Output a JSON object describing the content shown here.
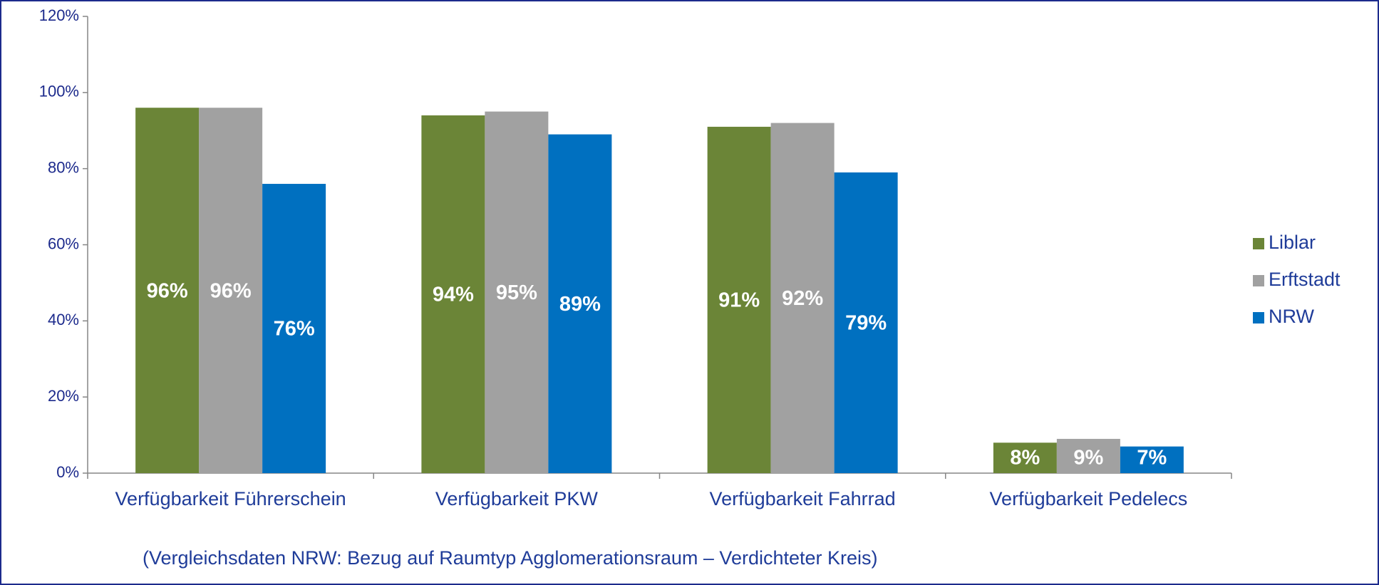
{
  "chart_data": {
    "type": "bar",
    "categories": [
      "Verfügbarkeit Führerschein",
      "Verfügbarkeit PKW",
      "Verfügbarkeit Fahrrad",
      "Verfügbarkeit Pedelecs"
    ],
    "series": [
      {
        "name": "Liblar",
        "color": "#6b8537",
        "values": [
          96,
          94,
          91,
          8
        ],
        "value_labels": [
          "96%",
          "94%",
          "91%",
          "8%"
        ]
      },
      {
        "name": "Erftstadt",
        "color": "#a1a1a1",
        "values": [
          96,
          95,
          92,
          9
        ],
        "value_labels": [
          "96%",
          "95%",
          "92%",
          "9%"
        ]
      },
      {
        "name": "NRW",
        "color": "#0070c0",
        "values": [
          76,
          89,
          79,
          7
        ],
        "value_labels": [
          "76%",
          "89%",
          "79%",
          "7%"
        ]
      }
    ],
    "ylim": [
      0,
      120
    ],
    "yticks": [
      {
        "value": 0,
        "label": "0%"
      },
      {
        "value": 20,
        "label": "20%"
      },
      {
        "value": 40,
        "label": "40%"
      },
      {
        "value": 60,
        "label": "60%"
      },
      {
        "value": 80,
        "label": "80%"
      },
      {
        "value": 100,
        "label": "100%"
      },
      {
        "value": 120,
        "label": "120%"
      }
    ],
    "legend": "right",
    "annotation": "(Vergleichsdaten NRW: Bezug auf Raumtyp Agglomerationsraum – Verdichteter Kreis)"
  }
}
